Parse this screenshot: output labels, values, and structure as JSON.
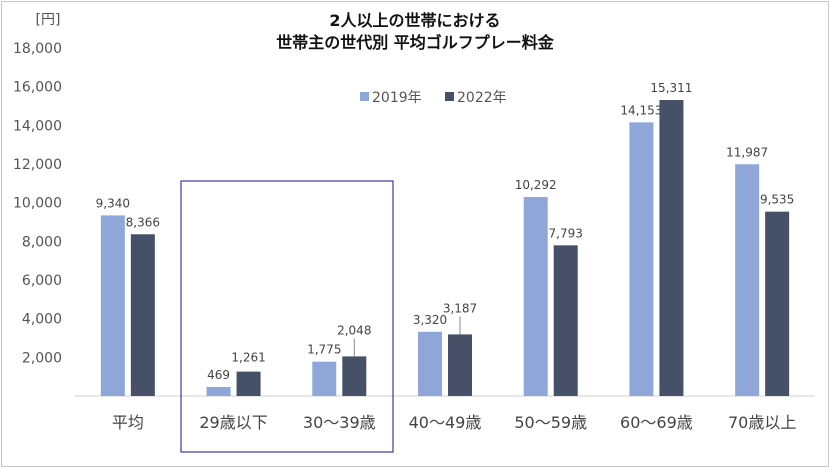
{
  "chart_data": {
    "type": "bar",
    "title": [
      "2人以上の世帯における",
      "世帯主の世代別 平均ゴルフプレー料金"
    ],
    "unit_label": "[円]",
    "categories": [
      "平均",
      "29歳以下",
      "30〜39歳",
      "40〜49歳",
      "50〜59歳",
      "60〜69歳",
      "70歳以上"
    ],
    "series": [
      {
        "name": "2019年",
        "color": "#8fa7d8",
        "values": [
          9340,
          469,
          1775,
          3320,
          10292,
          14153,
          11987
        ],
        "labels": [
          "9,340",
          "469",
          "1,775",
          "3,320",
          "10,292",
          "14,153",
          "11,987"
        ]
      },
      {
        "name": "2022年",
        "color": "#465169",
        "values": [
          8366,
          1261,
          2048,
          3187,
          7793,
          15311,
          9535
        ],
        "labels": [
          "8,366",
          "1,261",
          "2,048",
          "3,187",
          "7,793",
          "15,311",
          "9,535"
        ]
      }
    ],
    "ylim": [
      0,
      18000
    ],
    "yticks": [
      "",
      "2,000",
      "4,000",
      "6,000",
      "8,000",
      "10,000",
      "12,000",
      "14,000",
      "16,000",
      "18,000"
    ],
    "grid": false,
    "legend": "top-center",
    "highlight": {
      "categories": [
        "29歳以下",
        "30〜39歳"
      ],
      "color": "#3a3aa8"
    }
  }
}
